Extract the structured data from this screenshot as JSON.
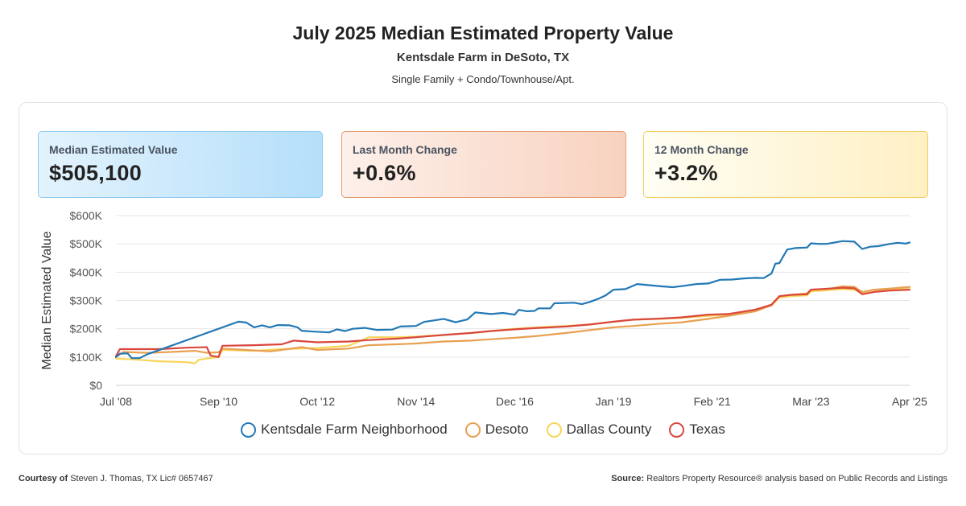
{
  "header": {
    "title": "July 2025 Median Estimated Property Value",
    "subtitle": "Kentsdale Farm in DeSoto, TX",
    "scope": "Single Family + Condo/Townhouse/Apt."
  },
  "cards": {
    "median": {
      "label": "Median Estimated Value",
      "value": "$505,100"
    },
    "last_month": {
      "label": "Last Month Change",
      "value": "+0.6%"
    },
    "twelve_month": {
      "label": "12 Month Change",
      "value": "+3.2%"
    }
  },
  "colors": {
    "kentsdale": "#2278b5",
    "desoto": "#e8a052",
    "dallas": "#f7d55a",
    "texas": "#d9473d",
    "grid": "#e6e6e6",
    "text": "#555555"
  },
  "chart_data": {
    "type": "line",
    "ylabel": "Median Estimated Value",
    "ylim": [
      0,
      600000
    ],
    "y_ticks": [
      0,
      100000,
      200000,
      300000,
      400000,
      500000,
      600000
    ],
    "y_tick_labels": [
      "$0",
      "$100K",
      "$200K",
      "$300K",
      "$400K",
      "$500K",
      "$600K"
    ],
    "xlim": [
      "2008-07",
      "2025-04"
    ],
    "x_ticks": [
      "2008-07",
      "2010-09",
      "2012-10",
      "2014-11",
      "2016-12",
      "2019-01",
      "2021-02",
      "2023-03",
      "2025-04"
    ],
    "x_tick_labels": [
      "Jul '08",
      "Sep '10",
      "Oct '12",
      "Nov '14",
      "Dec '16",
      "Jan '19",
      "Feb '21",
      "Mar '23",
      "Apr '25"
    ],
    "grid": true,
    "legend_position": "bottom",
    "series": [
      {
        "name": "Kentsdale Farm Neighborhood",
        "color_key": "kentsdale",
        "points": [
          [
            "2008-07",
            100000
          ],
          [
            "2008-08",
            112000
          ],
          [
            "2008-10",
            113000
          ],
          [
            "2008-11",
            96000
          ],
          [
            "2009-01",
            96000
          ],
          [
            "2009-03",
            110000
          ],
          [
            "2011-02",
            225000
          ],
          [
            "2011-04",
            222000
          ],
          [
            "2011-06",
            205000
          ],
          [
            "2011-08",
            212000
          ],
          [
            "2011-10",
            205000
          ],
          [
            "2011-12",
            213000
          ],
          [
            "2012-03",
            212000
          ],
          [
            "2012-05",
            205000
          ],
          [
            "2012-06",
            193000
          ],
          [
            "2012-09",
            190000
          ],
          [
            "2013-01",
            187000
          ],
          [
            "2013-03",
            198000
          ],
          [
            "2013-05",
            192000
          ],
          [
            "2013-07",
            200000
          ],
          [
            "2013-10",
            203000
          ],
          [
            "2014-01",
            196000
          ],
          [
            "2014-05",
            197000
          ],
          [
            "2014-07",
            208000
          ],
          [
            "2014-11",
            210000
          ],
          [
            "2015-01",
            224000
          ],
          [
            "2015-06",
            235000
          ],
          [
            "2015-09",
            223000
          ],
          [
            "2015-12",
            233000
          ],
          [
            "2016-02",
            258000
          ],
          [
            "2016-06",
            252000
          ],
          [
            "2016-09",
            256000
          ],
          [
            "2016-12",
            250000
          ],
          [
            "2017-01",
            267000
          ],
          [
            "2017-03",
            262000
          ],
          [
            "2017-05",
            263000
          ],
          [
            "2017-06",
            272000
          ],
          [
            "2017-09",
            272000
          ],
          [
            "2017-10",
            290000
          ],
          [
            "2018-03",
            292000
          ],
          [
            "2018-05",
            287000
          ],
          [
            "2018-07",
            295000
          ],
          [
            "2018-09",
            305000
          ],
          [
            "2018-11",
            318000
          ],
          [
            "2019-01",
            338000
          ],
          [
            "2019-04",
            340000
          ],
          [
            "2019-07",
            358000
          ],
          [
            "2019-10",
            354000
          ],
          [
            "2020-01",
            350000
          ],
          [
            "2020-04",
            347000
          ],
          [
            "2020-07",
            352000
          ],
          [
            "2020-10",
            358000
          ],
          [
            "2021-01",
            360000
          ],
          [
            "2021-04",
            373000
          ],
          [
            "2021-07",
            374000
          ],
          [
            "2021-10",
            378000
          ],
          [
            "2022-01",
            380000
          ],
          [
            "2022-03",
            379000
          ],
          [
            "2022-05",
            395000
          ],
          [
            "2022-06",
            430000
          ],
          [
            "2022-07",
            432000
          ],
          [
            "2022-09",
            480000
          ],
          [
            "2022-11",
            485000
          ],
          [
            "2023-02",
            487000
          ],
          [
            "2023-03",
            502000
          ],
          [
            "2023-05",
            500000
          ],
          [
            "2023-07",
            500000
          ],
          [
            "2023-09",
            505000
          ],
          [
            "2023-11",
            510000
          ],
          [
            "2024-02",
            508000
          ],
          [
            "2024-04",
            482000
          ],
          [
            "2024-06",
            490000
          ],
          [
            "2024-08",
            492000
          ],
          [
            "2024-11",
            500000
          ],
          [
            "2025-01",
            504000
          ],
          [
            "2025-03",
            501000
          ],
          [
            "2025-04",
            505100
          ]
        ]
      },
      {
        "name": "Desoto",
        "color_key": "desoto",
        "points": [
          [
            "2008-07",
            100000
          ],
          [
            "2008-09",
            118000
          ],
          [
            "2009-03",
            115000
          ],
          [
            "2009-09",
            118000
          ],
          [
            "2010-03",
            122000
          ],
          [
            "2010-06",
            115000
          ],
          [
            "2010-09",
            117000
          ],
          [
            "2010-10",
            130000
          ],
          [
            "2011-04",
            125000
          ],
          [
            "2011-10",
            120000
          ],
          [
            "2012-01",
            125000
          ],
          [
            "2012-06",
            135000
          ],
          [
            "2012-10",
            125000
          ],
          [
            "2013-06",
            130000
          ],
          [
            "2013-11",
            142000
          ],
          [
            "2014-06",
            145000
          ],
          [
            "2014-11",
            148000
          ],
          [
            "2015-06",
            155000
          ],
          [
            "2016-01",
            158000
          ],
          [
            "2016-06",
            163000
          ],
          [
            "2016-12",
            168000
          ],
          [
            "2017-06",
            175000
          ],
          [
            "2018-01",
            185000
          ],
          [
            "2018-07",
            195000
          ],
          [
            "2019-01",
            205000
          ],
          [
            "2019-06",
            210000
          ],
          [
            "2020-01",
            218000
          ],
          [
            "2020-06",
            222000
          ],
          [
            "2021-01",
            235000
          ],
          [
            "2021-06",
            245000
          ],
          [
            "2022-01",
            262000
          ],
          [
            "2022-05",
            283000
          ],
          [
            "2022-07",
            315000
          ],
          [
            "2022-10",
            320000
          ],
          [
            "2023-02",
            325000
          ],
          [
            "2023-03",
            338000
          ],
          [
            "2023-07",
            340000
          ],
          [
            "2023-11",
            350000
          ],
          [
            "2024-02",
            348000
          ],
          [
            "2024-04",
            330000
          ],
          [
            "2024-07",
            338000
          ],
          [
            "2024-11",
            342000
          ],
          [
            "2025-04",
            348000
          ]
        ]
      },
      {
        "name": "Dallas County",
        "color_key": "dallas",
        "points": [
          [
            "2008-07",
            95000
          ],
          [
            "2009-01",
            90000
          ],
          [
            "2009-06",
            85000
          ],
          [
            "2010-01",
            82000
          ],
          [
            "2010-03",
            78000
          ],
          [
            "2010-04",
            90000
          ],
          [
            "2010-06",
            95000
          ],
          [
            "2010-09",
            100000
          ],
          [
            "2010-10",
            125000
          ],
          [
            "2011-06",
            122000
          ],
          [
            "2012-01",
            128000
          ],
          [
            "2012-10",
            132000
          ],
          [
            "2013-06",
            140000
          ],
          [
            "2013-11",
            170000
          ],
          [
            "2014-06",
            170000
          ],
          [
            "2014-11",
            172000
          ],
          [
            "2015-06",
            178000
          ],
          [
            "2016-01",
            185000
          ],
          [
            "2016-06",
            192000
          ],
          [
            "2016-12",
            200000
          ],
          [
            "2017-06",
            205000
          ],
          [
            "2018-01",
            210000
          ],
          [
            "2018-07",
            215000
          ],
          [
            "2019-01",
            225000
          ],
          [
            "2019-06",
            232000
          ],
          [
            "2020-01",
            235000
          ],
          [
            "2020-06",
            238000
          ],
          [
            "2021-01",
            245000
          ],
          [
            "2021-06",
            250000
          ],
          [
            "2022-01",
            265000
          ],
          [
            "2022-05",
            282000
          ],
          [
            "2022-07",
            310000
          ],
          [
            "2022-10",
            315000
          ],
          [
            "2023-02",
            318000
          ],
          [
            "2023-03",
            332000
          ],
          [
            "2023-11",
            340000
          ],
          [
            "2024-02",
            338000
          ],
          [
            "2024-04",
            325000
          ],
          [
            "2024-07",
            330000
          ],
          [
            "2024-11",
            338000
          ],
          [
            "2025-04",
            345000
          ]
        ]
      },
      {
        "name": "Texas",
        "color_key": "texas",
        "points": [
          [
            "2008-07",
            103000
          ],
          [
            "2008-08",
            128000
          ],
          [
            "2009-06",
            128000
          ],
          [
            "2010-01",
            133000
          ],
          [
            "2010-06",
            135000
          ],
          [
            "2010-07",
            105000
          ],
          [
            "2010-09",
            100000
          ],
          [
            "2010-10",
            140000
          ],
          [
            "2011-06",
            142000
          ],
          [
            "2012-01",
            145000
          ],
          [
            "2012-04",
            158000
          ],
          [
            "2012-10",
            152000
          ],
          [
            "2013-06",
            155000
          ],
          [
            "2013-11",
            160000
          ],
          [
            "2014-06",
            165000
          ],
          [
            "2014-11",
            170000
          ],
          [
            "2015-06",
            178000
          ],
          [
            "2016-01",
            185000
          ],
          [
            "2016-06",
            192000
          ],
          [
            "2016-12",
            198000
          ],
          [
            "2017-06",
            203000
          ],
          [
            "2018-01",
            208000
          ],
          [
            "2018-07",
            215000
          ],
          [
            "2019-01",
            225000
          ],
          [
            "2019-06",
            232000
          ],
          [
            "2020-01",
            236000
          ],
          [
            "2020-06",
            240000
          ],
          [
            "2021-01",
            250000
          ],
          [
            "2021-06",
            252000
          ],
          [
            "2022-01",
            268000
          ],
          [
            "2022-05",
            285000
          ],
          [
            "2022-07",
            315000
          ],
          [
            "2022-10",
            320000
          ],
          [
            "2023-02",
            322000
          ],
          [
            "2023-03",
            338000
          ],
          [
            "2023-11",
            345000
          ],
          [
            "2024-02",
            343000
          ],
          [
            "2024-04",
            322000
          ],
          [
            "2024-07",
            330000
          ],
          [
            "2024-11",
            335000
          ],
          [
            "2025-04",
            338000
          ]
        ]
      }
    ]
  },
  "footer": {
    "courtesy_label": "Courtesy of",
    "courtesy_text": "Steven J. Thomas, TX Lic# 0657467",
    "source_label": "Source:",
    "source_text": "Realtors Property Resource® analysis based on Public Records and Listings"
  }
}
